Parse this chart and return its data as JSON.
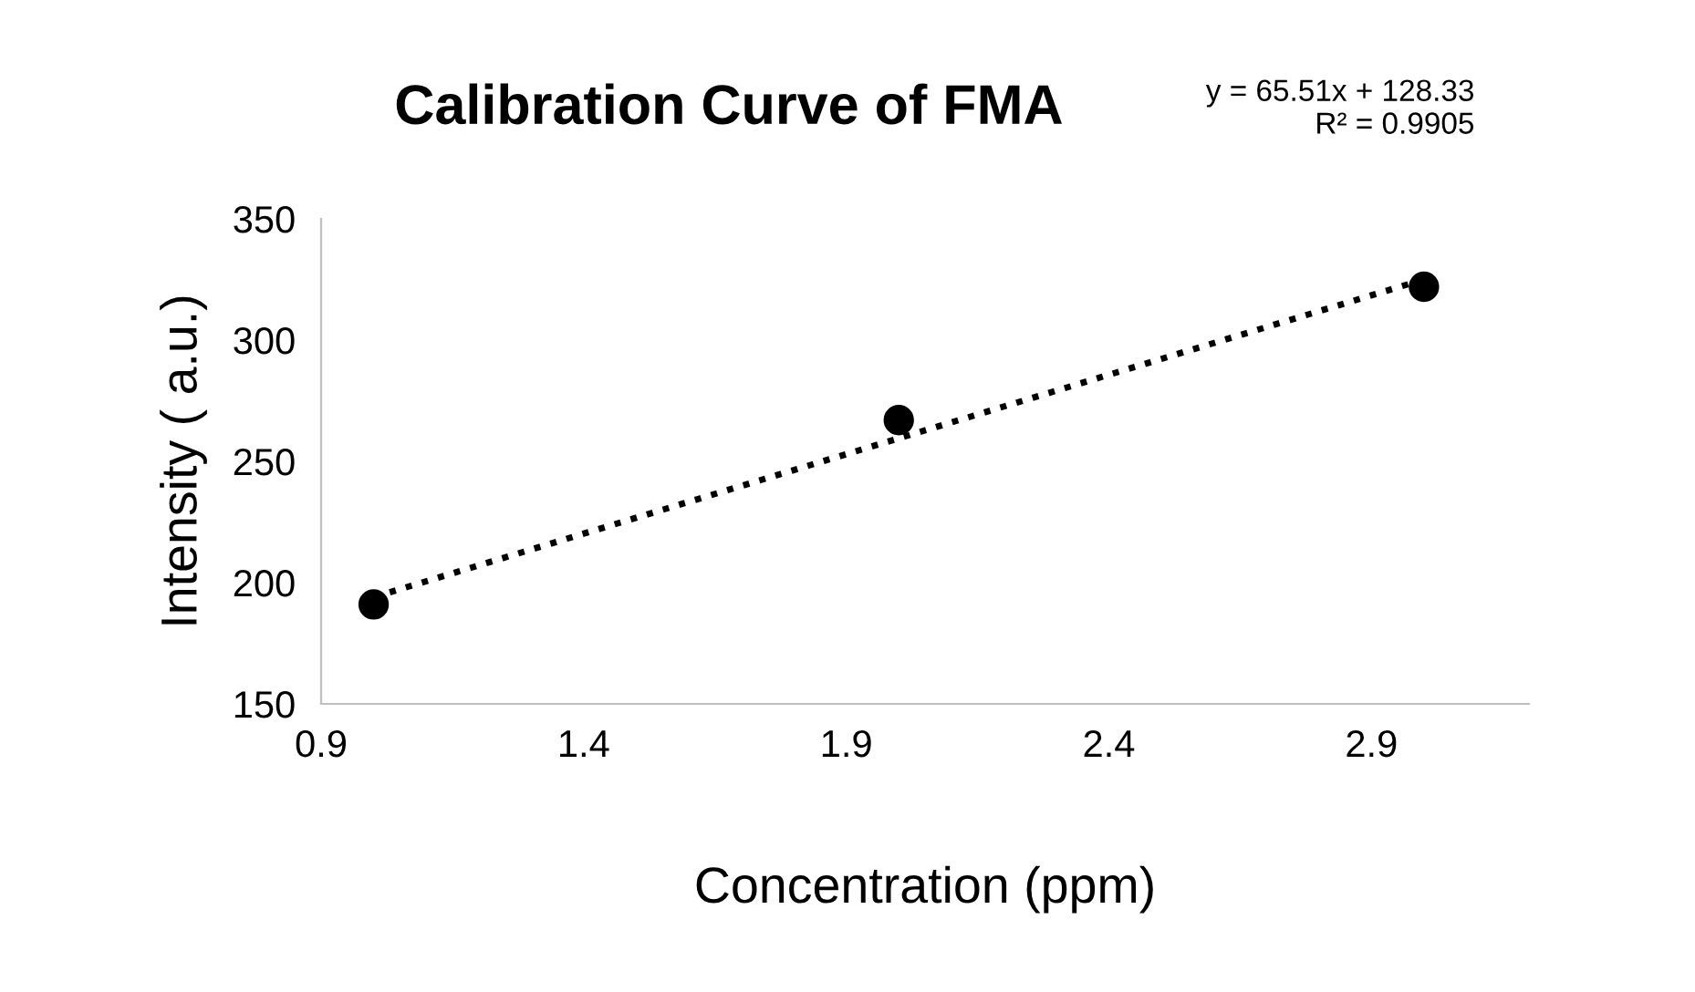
{
  "chart_data": {
    "type": "scatter",
    "title": "Calibration Curve of FMA",
    "xlabel": "Concentration (ppm)",
    "ylabel": "Intensity ( a.u.)",
    "annotations": [
      "y = 65.51x + 128.33\nR² = 0.9905"
    ],
    "series": [
      {
        "color": "#000000",
        "marker": "circle",
        "x": [
          1,
          2,
          3
        ],
        "values": [
          191,
          267,
          322
        ]
      },
      {
        "type": "line",
        "color": "#000000",
        "line_style": "dotted",
        "marker": "none",
        "x": [
          1,
          3
        ],
        "values": [
          194,
          325
        ]
      }
    ],
    "xlim": [
      0.9,
      3.2
    ],
    "xticks": [
      0.9,
      1.4,
      1.9,
      2.4,
      2.9
    ],
    "ylim": [
      150,
      350
    ],
    "yticks": [
      150,
      200,
      250,
      300,
      350
    ],
    "grid": false,
    "legend": false
  }
}
